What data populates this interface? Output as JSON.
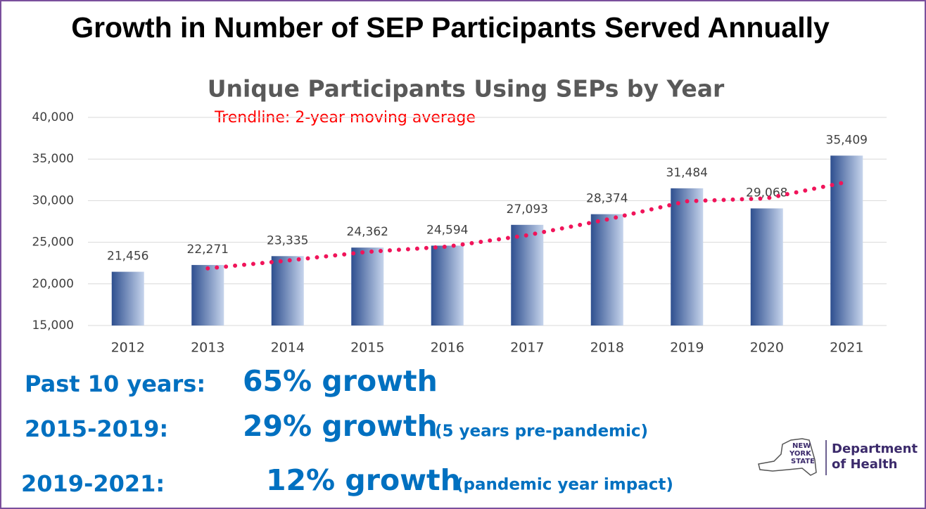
{
  "header": {
    "title": "Growth in Number of SEP Participants Served Annually"
  },
  "chart_data": {
    "type": "bar",
    "title": "Unique Participants Using SEPs by Year",
    "annotation": "Trendline: 2-year moving average",
    "categories": [
      "2012",
      "2013",
      "2014",
      "2015",
      "2016",
      "2017",
      "2018",
      "2019",
      "2020",
      "2021"
    ],
    "values": [
      21456,
      22271,
      23335,
      24362,
      24594,
      27093,
      28374,
      31484,
      29068,
      35409
    ],
    "value_labels": [
      "21,456",
      "22,271",
      "23,335",
      "24,362",
      "24,594",
      "27,093",
      "28,374",
      "31,484",
      "29,068",
      "35,409"
    ],
    "color": "#2e4f8f",
    "trendline": {
      "color": "#f0145a",
      "values": [
        null,
        21864,
        22803,
        23849,
        24478,
        25844,
        27734,
        29929,
        30276,
        32239
      ]
    },
    "ylim": [
      15000,
      40000
    ],
    "yticks": [
      {
        "value": 15000,
        "label": "15,000"
      },
      {
        "value": 20000,
        "label": "20,000"
      },
      {
        "value": 25000,
        "label": "25,000"
      },
      {
        "value": 30000,
        "label": "30,000"
      },
      {
        "value": 35000,
        "label": "35,000"
      },
      {
        "value": 40000,
        "label": "40,000"
      }
    ],
    "grid": true
  },
  "stats": [
    {
      "label": "Past 10 years:",
      "value": "65% growth"
    },
    {
      "label": "2015-2019:",
      "value": "29% growth",
      "note": "(5 years pre-pandemic)"
    },
    {
      "label": "2019-2021:",
      "value": "12% growth",
      "note": "(pandemic year impact)"
    }
  ],
  "logo": {
    "state": [
      "NEW",
      "YORK",
      "STATE"
    ],
    "department": [
      "Department",
      "of Health"
    ]
  }
}
